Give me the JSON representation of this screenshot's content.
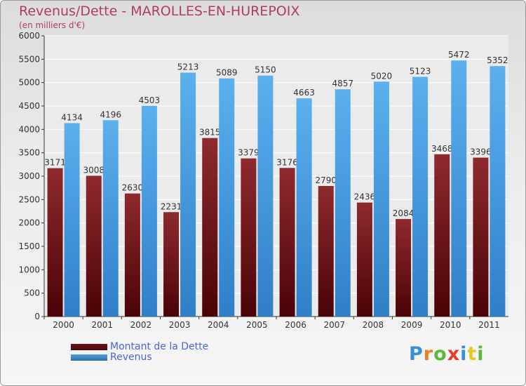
{
  "header": {
    "title": "Revenus/Dette - MAROLLES-EN-HUREPOIX",
    "subtitle": "(en milliers d'€)"
  },
  "chart_data": {
    "type": "bar",
    "title": "Revenus/Dette - MAROLLES-EN-HUREPOIX",
    "subtitle": "(en milliers d'€)",
    "categories": [
      "2000",
      "2001",
      "2002",
      "2003",
      "2004",
      "2005",
      "2006",
      "2007",
      "2008",
      "2009",
      "2010",
      "2011"
    ],
    "series": [
      {
        "name": "Montant de la Dette",
        "values": [
          3171,
          3008,
          2630,
          2231,
          3815,
          3379,
          3176,
          2790,
          2436,
          2084,
          3468,
          3396
        ],
        "color": "#7a1a1e"
      },
      {
        "name": "Revenus",
        "values": [
          4134,
          4196,
          4503,
          5213,
          5089,
          5150,
          4663,
          4857,
          5020,
          5123,
          5472,
          5352
        ],
        "color": "#4aa0e4"
      }
    ],
    "ylim": [
      0,
      6000
    ],
    "yticks": [
      0,
      500,
      1000,
      1500,
      2000,
      2500,
      3000,
      3500,
      4000,
      4500,
      5000,
      5500,
      6000
    ],
    "grid": true,
    "legend": "bottom-left"
  },
  "legend": {
    "items": [
      {
        "label": "Montant de la Dette",
        "color": "#6b0f12"
      },
      {
        "label": "Revenus",
        "color": "#4aa0e4"
      }
    ]
  },
  "logo": {
    "letters": [
      "P",
      "r",
      "o",
      "x",
      "i",
      "t",
      "i"
    ],
    "colors": [
      "#3a8ed8",
      "#e8821e",
      "#5ab83c",
      "#e83a2a",
      "#3a8ed8",
      "#e8c81e",
      "#5ab83c"
    ]
  }
}
